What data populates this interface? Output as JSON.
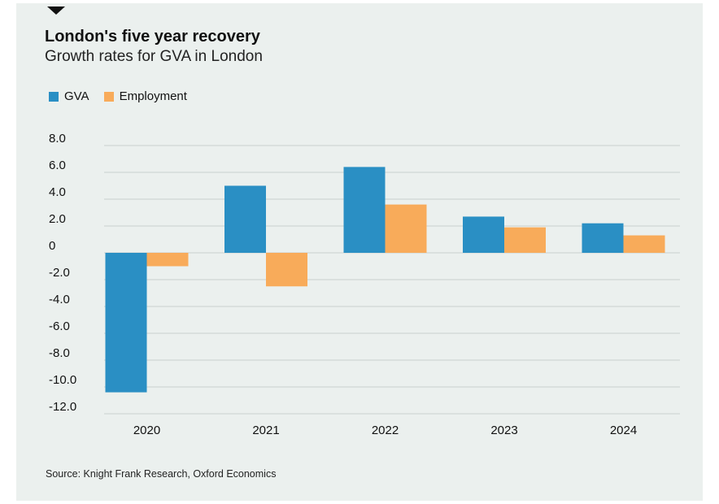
{
  "chart_data": {
    "type": "bar",
    "title": "London's five year recovery",
    "subtitle": "Growth rates for GVA in London",
    "categories": [
      "2020",
      "2021",
      "2022",
      "2023",
      "2024"
    ],
    "series": [
      {
        "name": "GVA",
        "color": "#2a8fc4",
        "values": [
          -10.4,
          5.0,
          6.4,
          2.7,
          2.2
        ]
      },
      {
        "name": "Employment",
        "color": "#f8ab5a",
        "values": [
          -1.0,
          -2.5,
          3.6,
          1.9,
          1.3
        ]
      }
    ],
    "y_ticks": [
      {
        "value": 8,
        "label": "8.0"
      },
      {
        "value": 6,
        "label": "6.0"
      },
      {
        "value": 4,
        "label": "4.0"
      },
      {
        "value": 2,
        "label": "2.0"
      },
      {
        "value": 0,
        "label": "0"
      },
      {
        "value": -2,
        "label": "-2.0"
      },
      {
        "value": -4,
        "label": "-4.0"
      },
      {
        "value": -6,
        "label": "-6.0"
      },
      {
        "value": -8,
        "label": "-8.0"
      },
      {
        "value": -10,
        "label": "-10.0"
      },
      {
        "value": -12,
        "label": "-12.0"
      }
    ],
    "ylim": [
      -12,
      8
    ],
    "grid": true,
    "legend_position": "top-left",
    "source": "Source: Knight Frank Research, Oxford Economics"
  }
}
